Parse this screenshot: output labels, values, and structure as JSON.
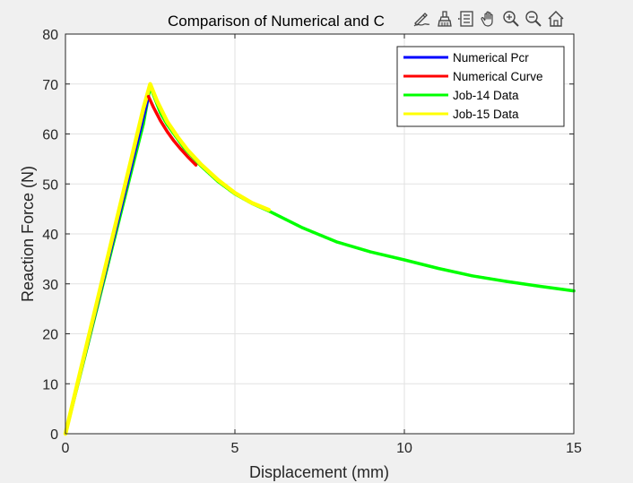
{
  "chart_data": {
    "type": "line",
    "title": "Comparison of Numerical and C",
    "xlabel": "Displacement (mm)",
    "ylabel": "Reaction Force (N)",
    "xlim": [
      0,
      15
    ],
    "ylim": [
      0,
      80
    ],
    "xticks": [
      0,
      5,
      10,
      15
    ],
    "yticks": [
      0,
      10,
      20,
      30,
      40,
      50,
      60,
      70,
      80
    ],
    "grid": true,
    "legend_position": "top-right",
    "series": [
      {
        "name": "Numerical Pcr",
        "color": "#0000ff",
        "x": [
          0,
          2.45
        ],
        "y": [
          0,
          67.5
        ]
      },
      {
        "name": "Numerical Curve",
        "color": "#ff0000",
        "x": [
          2.45,
          2.6,
          2.8,
          3.0,
          3.2,
          3.4,
          3.6,
          3.85
        ],
        "y": [
          67.5,
          65.3,
          62.7,
          60.5,
          58.6,
          57.0,
          55.5,
          53.8
        ]
      },
      {
        "name": "Job-14 Data",
        "color": "#00ff00",
        "x": [
          0,
          0.5,
          1.0,
          1.5,
          2.0,
          2.3,
          2.5,
          2.8,
          3.0,
          3.5,
          4.0,
          4.5,
          5.0,
          5.5,
          6.0,
          7.0,
          8.0,
          9.0,
          10.0,
          11.0,
          12.0,
          13.0,
          14.0,
          15.0
        ],
        "y": [
          0,
          13.5,
          27,
          40.5,
          54,
          62,
          69.5,
          64.3,
          61.9,
          57.2,
          53.6,
          50.5,
          48.0,
          46.1,
          44.6,
          41.2,
          38.4,
          36.4,
          34.8,
          33.1,
          31.6,
          30.5,
          29.5,
          28.6
        ]
      },
      {
        "name": "Job-15 Data",
        "color": "#ffff00",
        "x": [
          0,
          0.5,
          1.0,
          1.5,
          2.0,
          2.3,
          2.5,
          2.7,
          3.0,
          3.3,
          3.6,
          4.0,
          4.5,
          5.0,
          5.5,
          6.0
        ],
        "y": [
          0,
          14.2,
          28.3,
          42.5,
          56.6,
          65.1,
          70.0,
          66.6,
          62.5,
          59.5,
          56.8,
          53.9,
          50.8,
          48.2,
          46.2,
          44.8
        ]
      }
    ]
  },
  "toolbar": {
    "buttons": [
      "edit-plot-icon",
      "brush-icon",
      "data-tips-icon",
      "pan-icon",
      "zoom-in-icon",
      "zoom-out-icon",
      "home-icon"
    ]
  }
}
